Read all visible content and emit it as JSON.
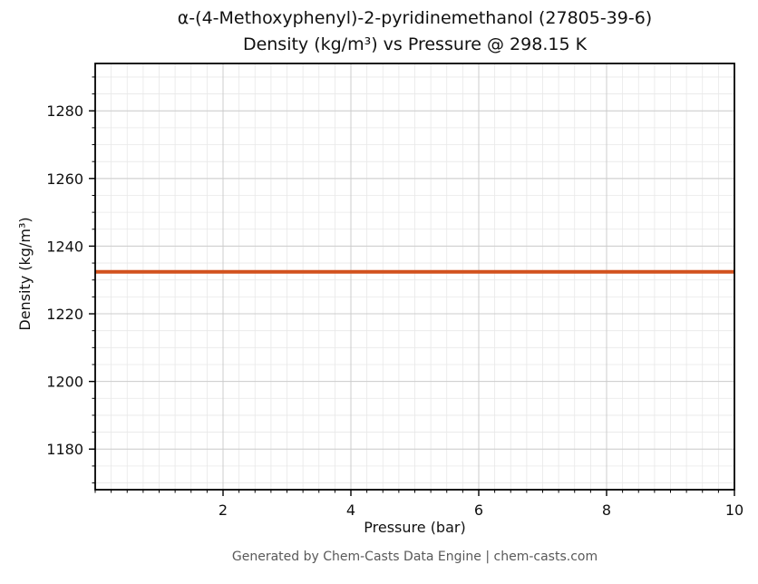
{
  "chart_data": {
    "type": "line",
    "title_line1": "α-(4-Methoxyphenyl)-2-pyridinemethanol (27805-39-6)",
    "title_line2": "Density (kg/m³) vs Pressure @ 298.15 K",
    "xlabel": "Pressure (bar)",
    "ylabel": "Density (kg/m³)",
    "xlim": [
      0,
      10
    ],
    "ylim": [
      1168,
      1294
    ],
    "x_major_ticks": [
      2,
      4,
      6,
      8,
      10
    ],
    "y_major_ticks": [
      1180,
      1200,
      1220,
      1240,
      1260,
      1280
    ],
    "x_minor_step": 0.25,
    "y_minor_step": 5,
    "grid": true,
    "colors": {
      "line": "#d2521e",
      "major_grid": "#cccccc",
      "minor_grid": "#e8e8e8",
      "border": "#000000"
    },
    "series": [
      {
        "name": "density-vs-pressure",
        "x": [
          0,
          10
        ],
        "y": [
          1232.4,
          1232.4
        ]
      }
    ],
    "footer": "Generated by Chem-Casts Data Engine | chem-casts.com"
  }
}
